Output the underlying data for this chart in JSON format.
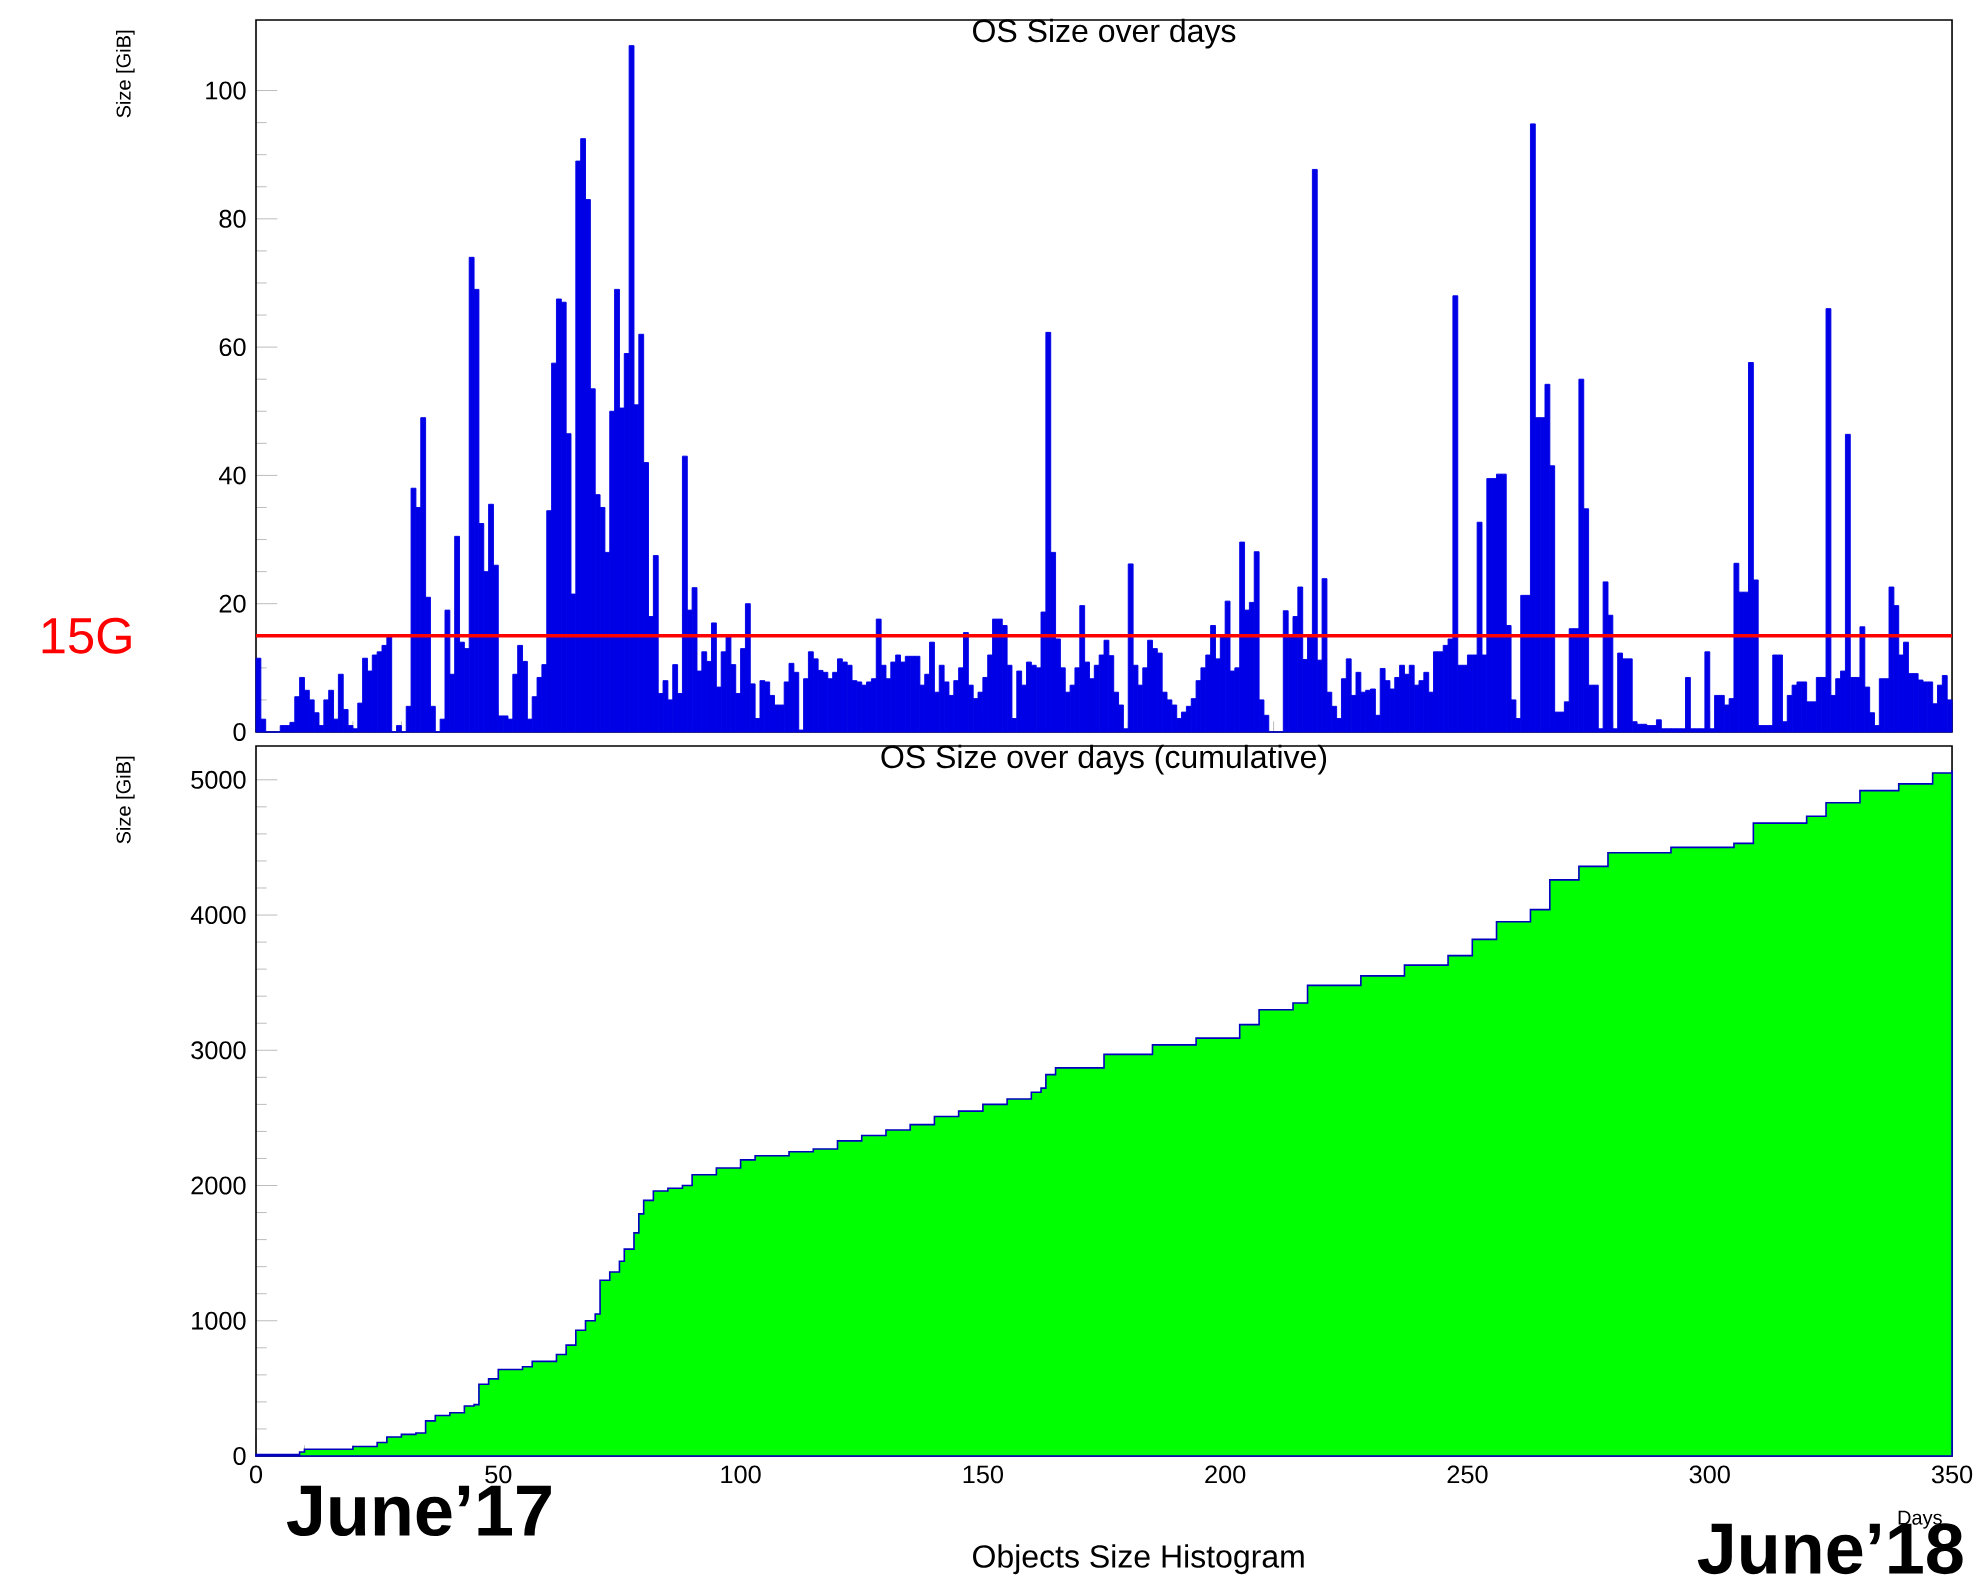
{
  "chart_data": [
    {
      "type": "histogram",
      "title": "OS Size over days",
      "ylabel": "Size [GiB]",
      "color": "#0000e6",
      "bins": [
        0,
        1,
        2,
        3,
        4,
        5,
        6,
        7,
        8,
        9,
        10,
        11,
        12,
        13,
        14,
        15,
        16,
        17,
        18,
        19,
        20,
        21,
        22,
        23,
        24,
        25,
        26,
        27,
        28,
        29,
        30,
        31,
        32,
        33,
        34,
        35,
        36,
        37,
        38,
        39,
        40,
        41,
        42,
        43,
        44,
        45,
        46,
        47,
        48,
        49,
        50,
        51,
        52,
        53,
        54,
        55,
        56,
        57,
        58,
        59,
        60,
        61,
        62,
        63,
        64,
        65,
        66,
        67,
        68,
        69,
        70,
        71,
        72,
        73,
        74,
        75,
        76,
        77,
        78,
        79,
        80,
        81,
        82,
        83,
        84,
        85,
        86,
        87,
        88,
        89,
        90,
        91,
        92,
        93,
        94,
        95,
        96,
        97,
        98,
        99,
        100,
        101,
        102,
        103,
        104,
        105,
        106,
        107,
        108,
        109,
        110,
        111,
        112,
        113,
        114,
        115,
        116,
        117,
        118,
        119,
        120,
        121,
        122,
        123,
        124,
        125,
        126,
        127,
        128,
        129,
        130,
        131,
        132,
        133,
        134,
        135,
        136,
        137,
        138,
        139,
        140,
        141,
        142,
        143,
        144,
        145,
        146,
        147,
        148,
        149,
        150,
        151,
        152,
        153,
        154,
        155,
        156,
        157,
        158,
        159,
        160,
        161,
        162,
        163,
        164,
        165,
        166,
        167,
        168,
        169,
        170,
        171,
        172,
        173,
        174,
        175,
        176,
        177,
        178,
        179,
        180,
        181,
        182,
        183,
        184,
        185,
        186,
        187,
        188,
        189,
        190,
        191,
        192,
        193,
        194,
        195,
        196,
        197,
        198,
        199,
        200,
        201,
        202,
        203,
        204,
        205,
        206,
        207,
        208,
        209,
        210,
        211,
        212,
        213,
        214,
        215,
        216,
        217,
        218,
        219,
        220,
        221,
        222,
        223,
        224,
        225,
        226,
        227,
        228,
        229,
        230,
        231,
        232,
        233,
        234,
        235,
        236,
        237,
        238,
        239,
        240,
        241,
        242,
        243,
        244,
        245,
        246,
        247,
        248,
        249,
        250,
        251,
        252,
        253,
        254,
        255,
        256,
        257,
        258,
        259,
        260,
        261,
        262,
        263,
        264,
        265,
        266,
        267,
        268,
        269,
        270,
        271,
        272,
        273,
        274,
        275,
        276,
        277,
        278,
        279,
        280,
        281,
        282,
        283,
        284,
        285,
        286,
        287,
        288,
        289,
        290,
        291,
        292,
        293,
        294,
        295,
        296,
        297,
        298,
        299,
        300,
        301,
        302,
        303,
        304,
        305,
        306,
        307,
        308,
        309,
        310,
        311,
        312,
        313,
        314,
        315,
        316,
        317,
        318,
        319,
        320,
        321,
        322,
        323,
        324,
        325,
        326,
        327,
        328,
        329,
        330,
        331,
        332,
        333,
        334,
        335,
        336,
        337,
        338,
        339,
        340,
        341,
        342,
        343,
        344,
        345,
        346,
        347,
        348,
        349,
        350
      ],
      "values": [
        11.5,
        2,
        0,
        0,
        0,
        1,
        1,
        1.5,
        5.5,
        8.5,
        6.5,
        5,
        3,
        1,
        5,
        6.5,
        2,
        9,
        3.5,
        1,
        0.5,
        4.5,
        11.5,
        9.5,
        12,
        12.5,
        13.5,
        15,
        0,
        1,
        0,
        4,
        38,
        35,
        49,
        21,
        4,
        0,
        2,
        19,
        9,
        30.5,
        14,
        13,
        74,
        69,
        32.5,
        25,
        35.5,
        26,
        2.5,
        2.5,
        2,
        9,
        13.5,
        11,
        2,
        5.5,
        8.5,
        10.5,
        34.5,
        57.5,
        67.5,
        67,
        46.5,
        21.5,
        89,
        92.5,
        83,
        53.5,
        37,
        35,
        28,
        50,
        69,
        50.5,
        59,
        107,
        51,
        62,
        42,
        18,
        27.5,
        6,
        8,
        5,
        10.5,
        6,
        43,
        19,
        22.5,
        9.5,
        12.5,
        11,
        17,
        7,
        12.5,
        15,
        10.5,
        6,
        13,
        20,
        7.5,
        2.1,
        8,
        7.8,
        5.7,
        4.2,
        4.2,
        7.8,
        10.7,
        9.3,
        0.3,
        8.3,
        12.5,
        11.4,
        9.6,
        9.3,
        8.3,
        9.3,
        11.4,
        10.9,
        10.4,
        8,
        7.8,
        7.3,
        7.8,
        8.3,
        17.6,
        10.4,
        8.3,
        10.9,
        12,
        10.9,
        11.8,
        11.8,
        11.8,
        7.3,
        9,
        14,
        6.2,
        10.4,
        7.8,
        5.7,
        8,
        10,
        15.5,
        7.3,
        5.2,
        6.2,
        8.5,
        12,
        17.6,
        17.6,
        16.6,
        10.4,
        2.1,
        9.5,
        7.3,
        10.9,
        10.4,
        10,
        18.7,
        62.3,
        28,
        14.5,
        10,
        6.2,
        7.3,
        10,
        19.7,
        10.9,
        8.3,
        10.4,
        12,
        14.3,
        11.9,
        6.2,
        4.2,
        0.5,
        26.2,
        10.4,
        7.3,
        10,
        14.3,
        13,
        12.3,
        6.2,
        5,
        4.2,
        2.1,
        3.1,
        4,
        5.2,
        8,
        10,
        12,
        16.6,
        11.4,
        15,
        20.4,
        9.5,
        10,
        29.6,
        19,
        20.2,
        28.1,
        5,
        2.6,
        0,
        0,
        0,
        18.9,
        15,
        18,
        22.6,
        11.3,
        15,
        87.7,
        11.2,
        23.9,
        6.2,
        4,
        2.1,
        8.3,
        11.4,
        5.7,
        9.3,
        6.2,
        6.5,
        6.7,
        2.6,
        9.9,
        8,
        6.7,
        8.5,
        10.4,
        9,
        10.4,
        7.3,
        8,
        9.3,
        6.2,
        12.5,
        12.5,
        13.5,
        14.5,
        68,
        10.4,
        10.4,
        12,
        12,
        32.7,
        12,
        39.5,
        39.5,
        40.2,
        40.2,
        16.6,
        5,
        2.1,
        21.3,
        21.3,
        94.8,
        49,
        49,
        54.2,
        41.5,
        3.1,
        3.1,
        4.7,
        16.1,
        16.1,
        55,
        34.8,
        7.3,
        7.3,
        0.5,
        23.4,
        18.2,
        0.5,
        12.3,
        11.4,
        11.4,
        1.6,
        1.2,
        1.2,
        1,
        1,
        1.9,
        0.5,
        0.5,
        0.5,
        0.5,
        0.5,
        8.5,
        0.5,
        0.5,
        0.5,
        12.5,
        0.5,
        5.7,
        5.7,
        4.2,
        5.2,
        26.3,
        21.8,
        21.8,
        57.6,
        23.7,
        1,
        1,
        1,
        12,
        12,
        1.6,
        5.7,
        7.3,
        7.8,
        7.8,
        4.7,
        4.7,
        8.5,
        8.5,
        66,
        5.7,
        8.3,
        9.5,
        46.4,
        8.5,
        8.5,
        16.4,
        7,
        3,
        1,
        8.3,
        8.3,
        22.6,
        19.7,
        12,
        14,
        9.1,
        9.1,
        8.1,
        7.8,
        7.8,
        4.4,
        7.3,
        8.8,
        5
      ],
      "xlim": [
        0,
        350
      ],
      "ylim": [
        0,
        111
      ],
      "xticks": [
        {
          "value": 0,
          "label": null
        },
        {
          "value": 50,
          "label": null
        },
        {
          "value": 100,
          "label": null
        },
        {
          "value": 150,
          "label": null
        },
        {
          "value": 200,
          "label": null
        },
        {
          "value": 250,
          "label": null
        },
        {
          "value": 300,
          "label": null
        },
        {
          "value": 350,
          "label": null
        }
      ],
      "yticks": [
        0,
        20,
        40,
        60,
        80,
        100
      ],
      "tick_labels": "y",
      "ref_lines": [
        {
          "axis": "y",
          "value": 15,
          "label": "15G",
          "color": "#ff0000"
        }
      ]
    },
    {
      "type": "area",
      "title": "OS Size over days (cumulative)",
      "xlabel": "Days",
      "ylabel": "Size [GiB]",
      "color": "#00ff00",
      "x": [
        0,
        9,
        10,
        20,
        25,
        27,
        30,
        33,
        35,
        37,
        40,
        43,
        45,
        46,
        48,
        50,
        55,
        57,
        60,
        62,
        64,
        66,
        68,
        70,
        71,
        73,
        75,
        76,
        78,
        79,
        80,
        82,
        85,
        88,
        90,
        95,
        100,
        103,
        110,
        115,
        120,
        125,
        130,
        135,
        140,
        145,
        150,
        155,
        160,
        162,
        163,
        165,
        175,
        185,
        194,
        203,
        207,
        214,
        217,
        228,
        237,
        246,
        251,
        256,
        263,
        267,
        273,
        279,
        292,
        305,
        309,
        320,
        324,
        331,
        339,
        346,
        350
      ],
      "values": [
        10,
        30,
        50,
        70,
        100,
        140,
        160,
        170,
        260,
        300,
        320,
        370,
        380,
        530,
        570,
        640,
        660,
        700,
        700,
        750,
        820,
        930,
        1000,
        1050,
        1300,
        1360,
        1440,
        1530,
        1650,
        1790,
        1890,
        1960,
        1980,
        2000,
        2080,
        2130,
        2190,
        2220,
        2250,
        2270,
        2330,
        2370,
        2410,
        2450,
        2510,
        2550,
        2600,
        2640,
        2690,
        2720,
        2820,
        2870,
        2970,
        3040,
        3090,
        3190,
        3300,
        3350,
        3480,
        3550,
        3630,
        3700,
        3820,
        3950,
        4040,
        4260,
        4360,
        4460,
        4500,
        4530,
        4680,
        4730,
        4830,
        4920,
        4970,
        5050,
        5070
      ],
      "xlim": [
        0,
        350
      ],
      "ylim": [
        0,
        5250
      ],
      "xticks": [
        0,
        50,
        100,
        150,
        200,
        250,
        300,
        350
      ],
      "yticks": [
        0,
        1000,
        2000,
        3000,
        4000,
        5000
      ],
      "annotations": [
        "June’17",
        "June’18",
        "Objects Size Histogram"
      ]
    }
  ]
}
